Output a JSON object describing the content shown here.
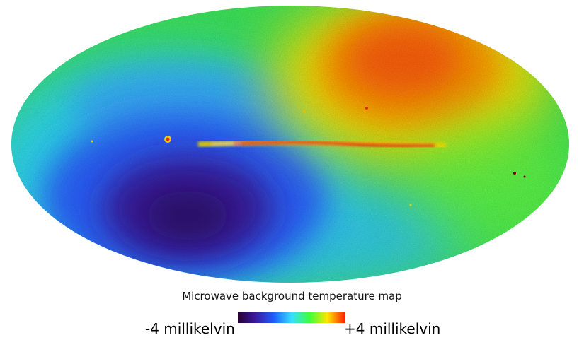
{
  "caption": "Microwave background temperature map",
  "scale": {
    "min_label": "-4 millikelvin",
    "max_label": "+4 millikelvin",
    "colors": [
      "#2a0030",
      "#3a1aa0",
      "#1f5bff",
      "#35e0ff",
      "#3dff3d",
      "#ffe600",
      "#ff1a00"
    ]
  },
  "map": {
    "projection": "Mollweide all-sky",
    "base_color": "#3fe85a",
    "hot_color": "#ff5a10",
    "cold_color": "#2a1a9a",
    "band_color": "#ff2a1a"
  }
}
